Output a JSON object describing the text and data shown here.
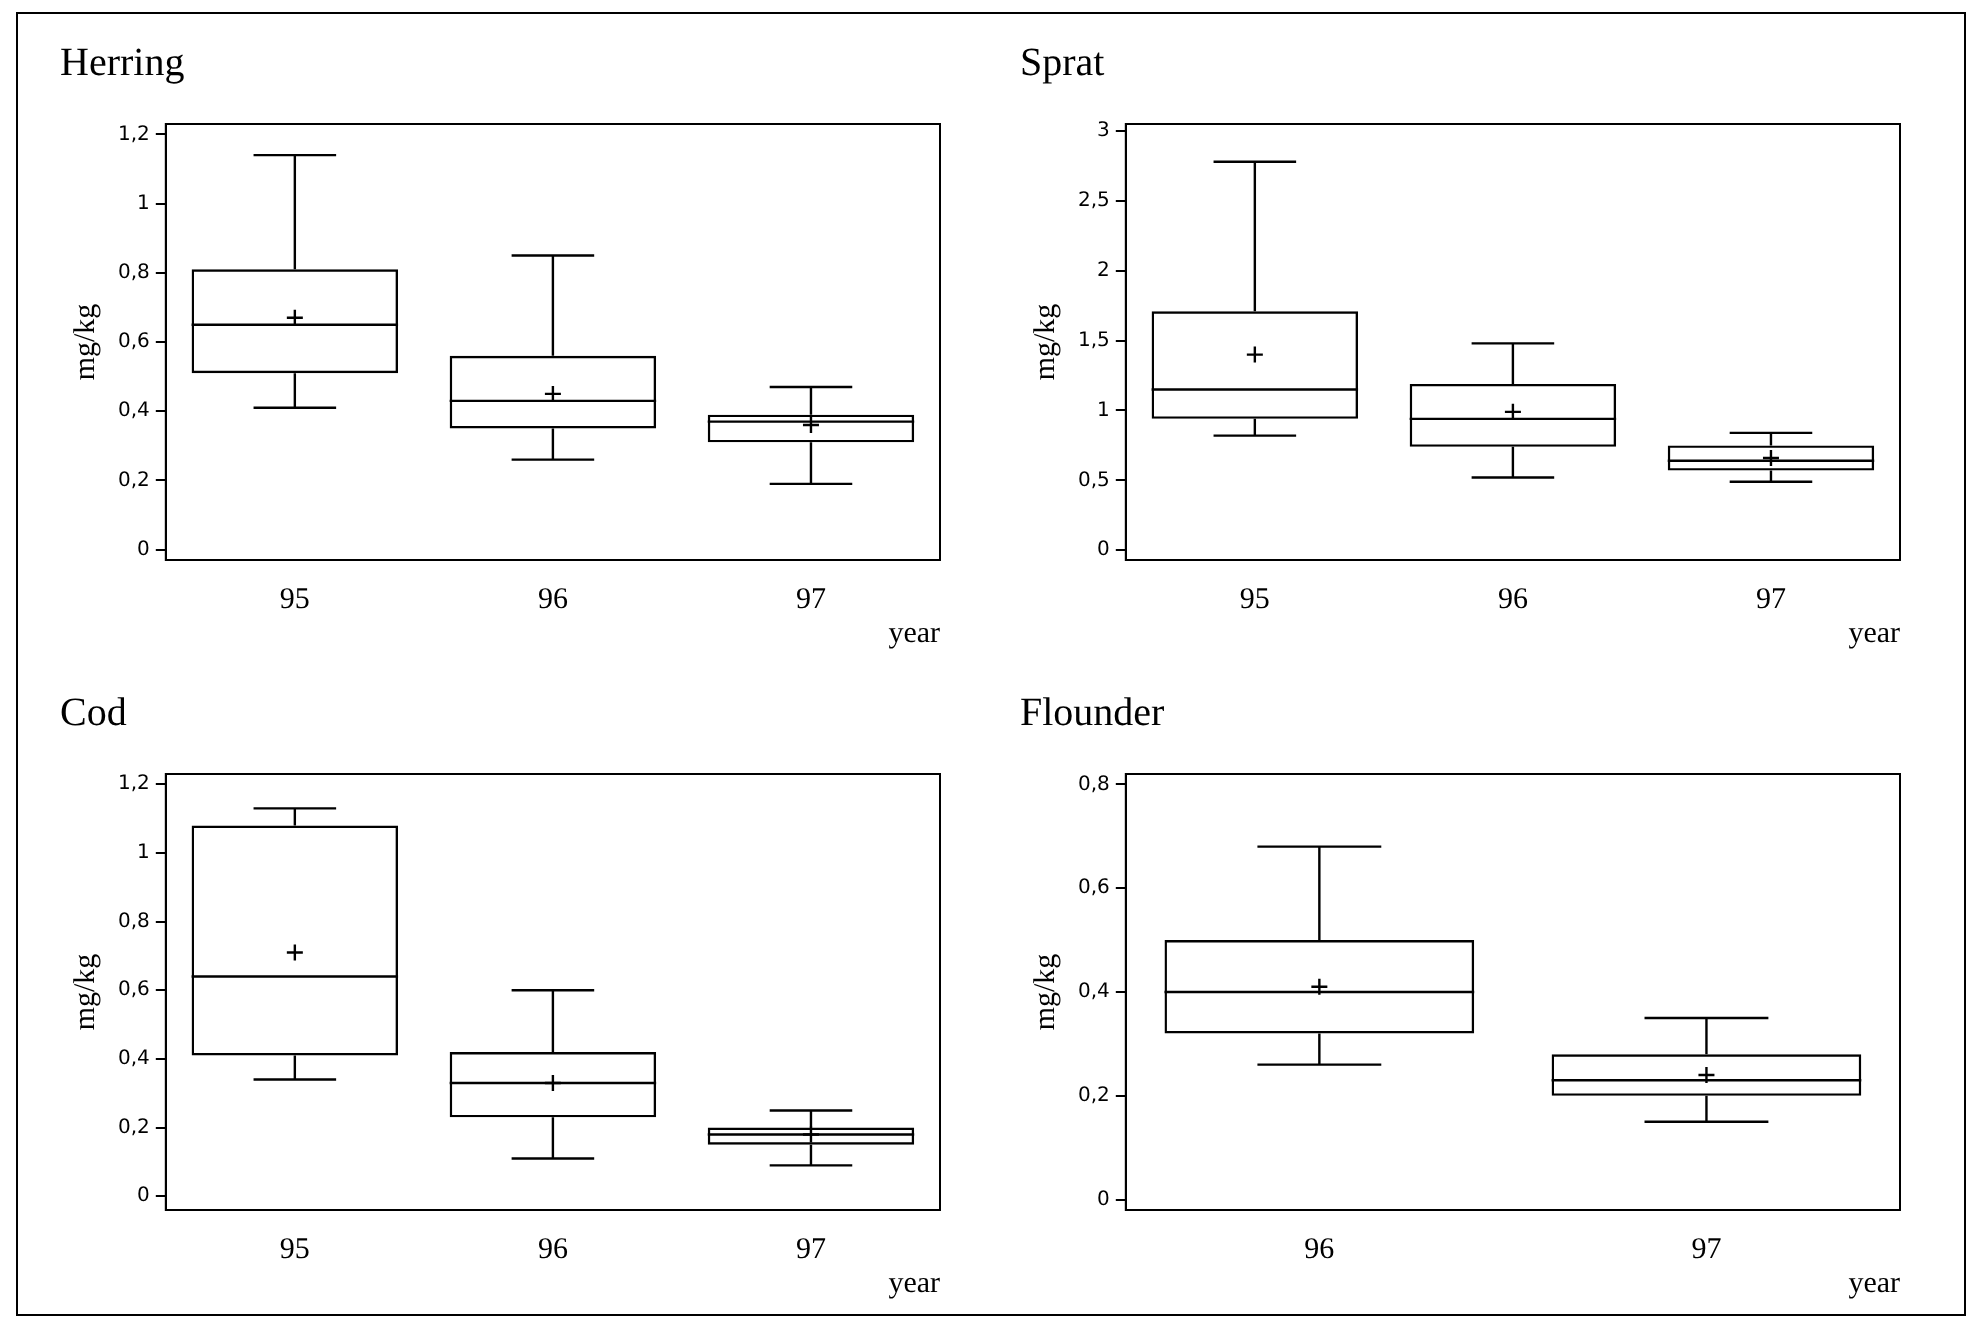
{
  "chart_data": [
    {
      "type": "box",
      "title": "Herring",
      "xlabel": "year",
      "ylabel": "mg/kg",
      "categories": [
        "95",
        "96",
        "97"
      ],
      "color": "#000000",
      "ylim": [
        -0.03,
        1.23
      ],
      "yticks": [
        {
          "value": 0,
          "label": "0"
        },
        {
          "value": 0.2,
          "label": "0,2"
        },
        {
          "value": 0.4,
          "label": "0,4"
        },
        {
          "value": 0.6,
          "label": "0,6"
        },
        {
          "value": 0.8,
          "label": "0,8"
        },
        {
          "value": 1,
          "label": "1"
        },
        {
          "value": 1.2,
          "label": "1,2"
        }
      ],
      "boxes": [
        {
          "low": 0.41,
          "q1": 0.51,
          "median": 0.65,
          "q3": 0.81,
          "high": 1.14,
          "mean": 0.67
        },
        {
          "low": 0.26,
          "q1": 0.35,
          "median": 0.43,
          "q3": 0.56,
          "high": 0.85,
          "mean": 0.45
        },
        {
          "low": 0.19,
          "q1": 0.31,
          "median": 0.37,
          "q3": 0.39,
          "high": 0.47,
          "mean": 0.36
        }
      ]
    },
    {
      "type": "box",
      "title": "Sprat",
      "xlabel": "year",
      "ylabel": "mg/kg",
      "categories": [
        "95",
        "96",
        "97"
      ],
      "color": "#000000",
      "ylim": [
        -0.07,
        3.05
      ],
      "yticks": [
        {
          "value": 0,
          "label": "0"
        },
        {
          "value": 0.5,
          "label": "0,5"
        },
        {
          "value": 1,
          "label": "1"
        },
        {
          "value": 1.5,
          "label": "1,5"
        },
        {
          "value": 2,
          "label": "2"
        },
        {
          "value": 2.5,
          "label": "2,5"
        },
        {
          "value": 3,
          "label": "3"
        }
      ],
      "boxes": [
        {
          "low": 0.82,
          "q1": 0.94,
          "median": 1.15,
          "q3": 1.71,
          "high": 2.78,
          "mean": 1.4
        },
        {
          "low": 0.52,
          "q1": 0.74,
          "median": 0.94,
          "q3": 1.19,
          "high": 1.48,
          "mean": 0.99
        },
        {
          "low": 0.49,
          "q1": 0.57,
          "median": 0.64,
          "q3": 0.75,
          "high": 0.84,
          "mean": 0.66
        }
      ]
    },
    {
      "type": "box",
      "title": "Cod",
      "xlabel": "year",
      "ylabel": "mg/kg",
      "categories": [
        "95",
        "96",
        "97"
      ],
      "color": "#000000",
      "ylim": [
        -0.04,
        1.23
      ],
      "yticks": [
        {
          "value": 0,
          "label": "0"
        },
        {
          "value": 0.2,
          "label": "0,2"
        },
        {
          "value": 0.4,
          "label": "0,4"
        },
        {
          "value": 0.6,
          "label": "0,6"
        },
        {
          "value": 0.8,
          "label": "0,8"
        },
        {
          "value": 1,
          "label": "1"
        },
        {
          "value": 1.2,
          "label": "1,2"
        }
      ],
      "boxes": [
        {
          "low": 0.34,
          "q1": 0.41,
          "median": 0.64,
          "q3": 1.08,
          "high": 1.13,
          "mean": 0.71
        },
        {
          "low": 0.11,
          "q1": 0.23,
          "median": 0.33,
          "q3": 0.42,
          "high": 0.6,
          "mean": 0.33
        },
        {
          "low": 0.09,
          "q1": 0.15,
          "median": 0.18,
          "q3": 0.2,
          "high": 0.25,
          "mean": 0.18
        }
      ]
    },
    {
      "type": "box",
      "title": "Flounder",
      "xlabel": "year",
      "ylabel": "mg/kg",
      "categories": [
        "96",
        "97"
      ],
      "color": "#000000",
      "ylim": [
        -0.02,
        0.82
      ],
      "yticks": [
        {
          "value": 0,
          "label": "0"
        },
        {
          "value": 0.2,
          "label": "0,2"
        },
        {
          "value": 0.4,
          "label": "0,4"
        },
        {
          "value": 0.6,
          "label": "0,6"
        },
        {
          "value": 0.8,
          "label": "0,8"
        }
      ],
      "boxes": [
        {
          "low": 0.26,
          "q1": 0.32,
          "median": 0.4,
          "q3": 0.5,
          "high": 0.68,
          "mean": 0.41
        },
        {
          "low": 0.15,
          "q1": 0.2,
          "median": 0.23,
          "q3": 0.28,
          "high": 0.35,
          "mean": 0.24
        }
      ]
    }
  ]
}
